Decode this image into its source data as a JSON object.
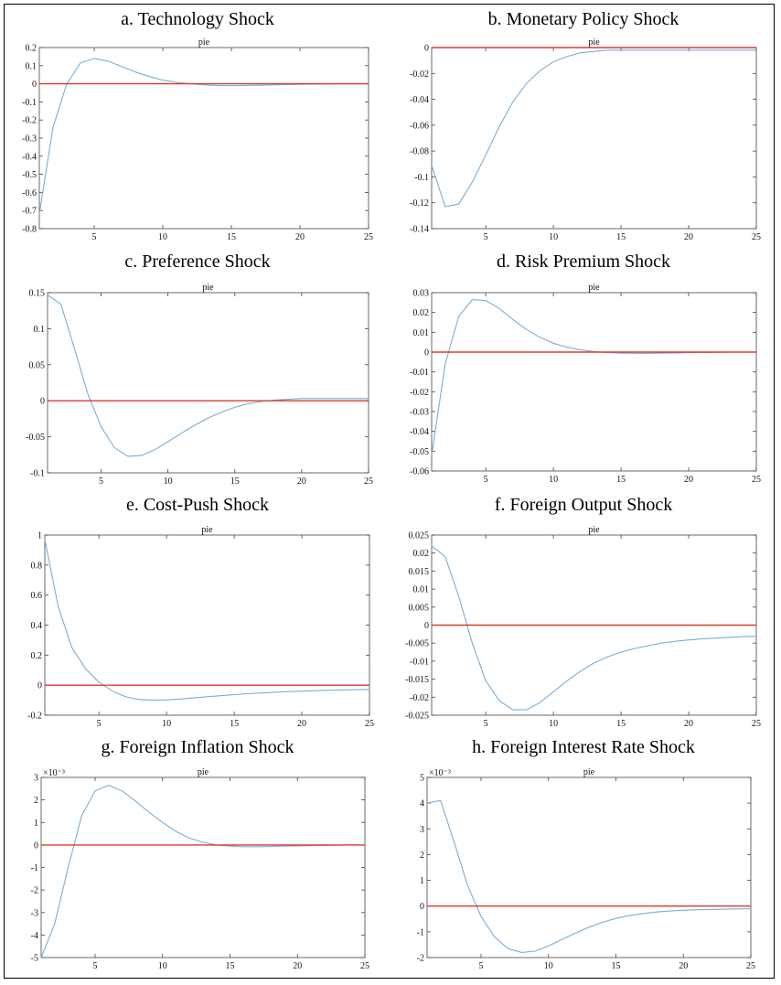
{
  "chart_data": [
    {
      "type": "line",
      "panel_title": "a. Technology Shock",
      "title": "pie",
      "x": [
        1,
        2,
        3,
        4,
        5,
        6,
        7,
        8,
        9,
        10,
        11,
        12,
        13,
        14,
        15,
        16,
        17,
        18,
        19,
        20,
        21,
        22,
        23,
        24,
        25
      ],
      "series": [
        {
          "values": [
            -0.72,
            -0.24,
            0.0,
            0.115,
            0.14,
            0.125,
            0.095,
            0.065,
            0.04,
            0.02,
            0.008,
            0.0,
            -0.006,
            -0.009,
            -0.01,
            -0.009,
            -0.008,
            -0.006,
            -0.004,
            -0.003,
            -0.002,
            -0.001,
            0.0,
            0.0,
            0.0
          ]
        },
        {
          "values": [
            0,
            0,
            0,
            0,
            0,
            0,
            0,
            0,
            0,
            0,
            0,
            0,
            0,
            0,
            0,
            0,
            0,
            0,
            0,
            0,
            0,
            0,
            0,
            0,
            0
          ]
        }
      ],
      "xlim": [
        1,
        25
      ],
      "ylim": [
        -0.8,
        0.2
      ],
      "xticks": [
        5,
        10,
        15,
        20,
        25
      ],
      "xticklabels": [
        "5",
        "10",
        "15",
        "20",
        "25"
      ],
      "yticks": [
        -0.8,
        -0.7,
        -0.6,
        -0.5,
        -0.4,
        -0.3,
        -0.2,
        -0.1,
        0,
        0.1,
        0.2
      ],
      "yticklabels": [
        "-0.8",
        "-0.7",
        "-0.6",
        "-0.5",
        "-0.4",
        "-0.3",
        "-0.2",
        "-0.1",
        "0",
        "0.1",
        "0.2"
      ],
      "exponent": "",
      "colors": [
        "#7aaed6",
        "#e0392b"
      ]
    },
    {
      "type": "line",
      "panel_title": "b. Monetary Policy Shock",
      "title": "pie",
      "x": [
        1,
        2,
        3,
        4,
        5,
        6,
        7,
        8,
        9,
        10,
        11,
        12,
        13,
        14,
        15,
        16,
        17,
        18,
        19,
        20,
        21,
        22,
        23,
        24,
        25
      ],
      "series": [
        {
          "values": [
            -0.091,
            -0.123,
            -0.121,
            -0.104,
            -0.083,
            -0.061,
            -0.042,
            -0.028,
            -0.018,
            -0.011,
            -0.007,
            -0.004,
            -0.003,
            -0.002,
            -0.002,
            -0.002,
            -0.002,
            -0.002,
            -0.002,
            -0.002,
            -0.002,
            -0.002,
            -0.002,
            -0.002,
            -0.002
          ]
        },
        {
          "values": [
            0,
            0,
            0,
            0,
            0,
            0,
            0,
            0,
            0,
            0,
            0,
            0,
            0,
            0,
            0,
            0,
            0,
            0,
            0,
            0,
            0,
            0,
            0,
            0,
            0
          ]
        }
      ],
      "xlim": [
        1,
        25
      ],
      "ylim": [
        -0.14,
        0
      ],
      "xticks": [
        5,
        10,
        15,
        20,
        25
      ],
      "xticklabels": [
        "5",
        "10",
        "15",
        "20",
        "25"
      ],
      "yticks": [
        -0.14,
        -0.12,
        -0.1,
        -0.08,
        -0.06,
        -0.04,
        -0.02,
        0
      ],
      "yticklabels": [
        "-0.14",
        "-0.12",
        "-0.1",
        "-0.08",
        "-0.06",
        "-0.04",
        "-0.02",
        "0"
      ],
      "exponent": "",
      "colors": [
        "#7aaed6",
        "#e0392b"
      ]
    },
    {
      "type": "line",
      "panel_title": "c. Preference Shock",
      "title": "pie",
      "x": [
        1,
        2,
        3,
        4,
        5,
        6,
        7,
        8,
        9,
        10,
        11,
        12,
        13,
        14,
        15,
        16,
        17,
        18,
        19,
        20,
        21,
        22,
        23,
        24,
        25
      ],
      "series": [
        {
          "values": [
            0.147,
            0.134,
            0.073,
            0.01,
            -0.036,
            -0.065,
            -0.077,
            -0.076,
            -0.068,
            -0.057,
            -0.045,
            -0.034,
            -0.024,
            -0.016,
            -0.009,
            -0.004,
            -0.001,
            0.001,
            0.002,
            0.003,
            0.003,
            0.003,
            0.003,
            0.003,
            0.003
          ]
        },
        {
          "values": [
            0,
            0,
            0,
            0,
            0,
            0,
            0,
            0,
            0,
            0,
            0,
            0,
            0,
            0,
            0,
            0,
            0,
            0,
            0,
            0,
            0,
            0,
            0,
            0,
            0
          ]
        }
      ],
      "xlim": [
        1,
        25
      ],
      "ylim": [
        -0.1,
        0.15
      ],
      "xticks": [
        5,
        10,
        15,
        20,
        25
      ],
      "xticklabels": [
        "5",
        "10",
        "15",
        "20",
        "25"
      ],
      "yticks": [
        -0.1,
        -0.05,
        0,
        0.05,
        0.1,
        0.15
      ],
      "yticklabels": [
        "-0.1",
        "-0.05",
        "0",
        "0.05",
        "0.1",
        "0.15"
      ],
      "exponent": "",
      "colors": [
        "#7aaed6",
        "#e0392b"
      ]
    },
    {
      "type": "line",
      "panel_title": "d. Risk Premium Shock",
      "title": "pie",
      "x": [
        1,
        2,
        3,
        4,
        5,
        6,
        7,
        8,
        9,
        10,
        11,
        12,
        13,
        14,
        15,
        16,
        17,
        18,
        19,
        20,
        21,
        22,
        23,
        24,
        25
      ],
      "series": [
        {
          "values": [
            -0.052,
            -0.006,
            0.018,
            0.0265,
            0.026,
            0.022,
            0.0165,
            0.0115,
            0.0075,
            0.0045,
            0.0025,
            0.0012,
            0.0003,
            -0.0002,
            -0.0005,
            -0.0006,
            -0.0006,
            -0.0005,
            -0.0004,
            -0.0003,
            -0.0002,
            -0.0001,
            0.0,
            0.0,
            0.0
          ]
        },
        {
          "values": [
            0,
            0,
            0,
            0,
            0,
            0,
            0,
            0,
            0,
            0,
            0,
            0,
            0,
            0,
            0,
            0,
            0,
            0,
            0,
            0,
            0,
            0,
            0,
            0,
            0
          ]
        }
      ],
      "xlim": [
        1,
        25
      ],
      "ylim": [
        -0.06,
        0.03
      ],
      "xticks": [
        5,
        10,
        15,
        20,
        25
      ],
      "xticklabels": [
        "5",
        "10",
        "15",
        "20",
        "25"
      ],
      "yticks": [
        -0.06,
        -0.05,
        -0.04,
        -0.03,
        -0.02,
        -0.01,
        0,
        0.01,
        0.02,
        0.03
      ],
      "yticklabels": [
        "-0.06",
        "-0.05",
        "-0.04",
        "-0.03",
        "-0.02",
        "-0.01",
        "0",
        "0.01",
        "0.02",
        "0.03"
      ],
      "exponent": "",
      "colors": [
        "#7aaed6",
        "#e0392b"
      ]
    },
    {
      "type": "line",
      "panel_title": "e. Cost-Push Shock",
      "title": "pie",
      "x": [
        1,
        2,
        3,
        4,
        5,
        6,
        7,
        8,
        9,
        10,
        11,
        12,
        13,
        14,
        15,
        16,
        17,
        18,
        19,
        20,
        21,
        22,
        23,
        24,
        25
      ],
      "series": [
        {
          "values": [
            0.97,
            0.52,
            0.25,
            0.11,
            0.02,
            -0.04,
            -0.078,
            -0.095,
            -0.1,
            -0.098,
            -0.092,
            -0.085,
            -0.077,
            -0.07,
            -0.063,
            -0.057,
            -0.052,
            -0.047,
            -0.043,
            -0.04,
            -0.037,
            -0.034,
            -0.032,
            -0.03,
            -0.028
          ]
        },
        {
          "values": [
            0,
            0,
            0,
            0,
            0,
            0,
            0,
            0,
            0,
            0,
            0,
            0,
            0,
            0,
            0,
            0,
            0,
            0,
            0,
            0,
            0,
            0,
            0,
            0,
            0
          ]
        }
      ],
      "xlim": [
        1,
        25
      ],
      "ylim": [
        -0.2,
        1
      ],
      "xticks": [
        5,
        10,
        15,
        20,
        25
      ],
      "xticklabels": [
        "5",
        "10",
        "15",
        "20",
        "25"
      ],
      "yticks": [
        -0.2,
        0,
        0.2,
        0.4,
        0.6,
        0.8,
        1
      ],
      "yticklabels": [
        "-0.2",
        "0",
        "0.2",
        "0.4",
        "0.6",
        "0.8",
        "1"
      ],
      "exponent": "",
      "colors": [
        "#7aaed6",
        "#e0392b"
      ]
    },
    {
      "type": "line",
      "panel_title": "f. Foreign Output Shock",
      "title": "pie",
      "x": [
        1,
        2,
        3,
        4,
        5,
        6,
        7,
        8,
        9,
        10,
        11,
        12,
        13,
        14,
        15,
        16,
        17,
        18,
        19,
        20,
        21,
        22,
        23,
        24,
        25
      ],
      "series": [
        {
          "values": [
            0.022,
            0.019,
            0.008,
            -0.005,
            -0.0155,
            -0.021,
            -0.0235,
            -0.0235,
            -0.0215,
            -0.0185,
            -0.0155,
            -0.0128,
            -0.0105,
            -0.0088,
            -0.0075,
            -0.0065,
            -0.0057,
            -0.005,
            -0.0045,
            -0.0041,
            -0.0038,
            -0.0036,
            -0.0034,
            -0.0032,
            -0.0031
          ]
        },
        {
          "values": [
            0,
            0,
            0,
            0,
            0,
            0,
            0,
            0,
            0,
            0,
            0,
            0,
            0,
            0,
            0,
            0,
            0,
            0,
            0,
            0,
            0,
            0,
            0,
            0,
            0
          ]
        }
      ],
      "xlim": [
        1,
        25
      ],
      "ylim": [
        -0.025,
        0.025
      ],
      "xticks": [
        5,
        10,
        15,
        20,
        25
      ],
      "xticklabels": [
        "5",
        "10",
        "15",
        "20",
        "25"
      ],
      "yticks": [
        -0.025,
        -0.02,
        -0.015,
        -0.01,
        -0.005,
        0,
        0.005,
        0.01,
        0.015,
        0.02,
        0.025
      ],
      "yticklabels": [
        "-0.025",
        "-0.02",
        "-0.015",
        "-0.01",
        "-0.005",
        "0",
        "0.005",
        "0.01",
        "0.015",
        "0.02",
        "0.025"
      ],
      "exponent": "",
      "colors": [
        "#7aaed6",
        "#e0392b"
      ]
    },
    {
      "type": "line",
      "panel_title": "g. Foreign Inflation Shock",
      "title": "pie",
      "x": [
        1,
        2,
        3,
        4,
        5,
        6,
        7,
        8,
        9,
        10,
        11,
        12,
        13,
        14,
        15,
        16,
        17,
        18,
        19,
        20,
        21,
        22,
        23,
        24,
        25
      ],
      "series": [
        {
          "values": [
            -5.0,
            -3.5,
            -1.0,
            1.3,
            2.4,
            2.65,
            2.4,
            1.95,
            1.45,
            1.0,
            0.6,
            0.3,
            0.12,
            0.0,
            -0.05,
            -0.08,
            -0.08,
            -0.07,
            -0.05,
            -0.04,
            -0.03,
            -0.02,
            -0.01,
            0.0,
            0.0
          ]
        },
        {
          "values": [
            0,
            0,
            0,
            0,
            0,
            0,
            0,
            0,
            0,
            0,
            0,
            0,
            0,
            0,
            0,
            0,
            0,
            0,
            0,
            0,
            0,
            0,
            0,
            0,
            0
          ]
        }
      ],
      "xlim": [
        1,
        25
      ],
      "ylim": [
        -5,
        3
      ],
      "xticks": [
        5,
        10,
        15,
        20,
        25
      ],
      "xticklabels": [
        "5",
        "10",
        "15",
        "20",
        "25"
      ],
      "yticks": [
        -5,
        -4,
        -3,
        -2,
        -1,
        0,
        1,
        2,
        3
      ],
      "yticklabels": [
        "-5",
        "-4",
        "-3",
        "-2",
        "-1",
        "0",
        "1",
        "2",
        "3"
      ],
      "exponent": "×10⁻³",
      "colors": [
        "#7aaed6",
        "#e0392b"
      ]
    },
    {
      "type": "line",
      "panel_title": "h. Foreign Interest Rate Shock",
      "title": "pie",
      "x": [
        1,
        2,
        3,
        4,
        5,
        6,
        7,
        8,
        9,
        10,
        11,
        12,
        13,
        14,
        15,
        16,
        17,
        18,
        19,
        20,
        21,
        22,
        23,
        24,
        25
      ],
      "series": [
        {
          "values": [
            4.0,
            4.1,
            2.5,
            0.8,
            -0.4,
            -1.2,
            -1.65,
            -1.8,
            -1.75,
            -1.55,
            -1.3,
            -1.05,
            -0.82,
            -0.63,
            -0.48,
            -0.37,
            -0.29,
            -0.23,
            -0.19,
            -0.16,
            -0.14,
            -0.13,
            -0.12,
            -0.11,
            -0.1
          ]
        },
        {
          "values": [
            0,
            0,
            0,
            0,
            0,
            0,
            0,
            0,
            0,
            0,
            0,
            0,
            0,
            0,
            0,
            0,
            0,
            0,
            0,
            0,
            0,
            0,
            0,
            0,
            0
          ]
        }
      ],
      "xlim": [
        1,
        25
      ],
      "ylim": [
        -2,
        5
      ],
      "xticks": [
        5,
        10,
        15,
        20,
        25
      ],
      "xticklabels": [
        "5",
        "10",
        "15",
        "20",
        "25"
      ],
      "yticks": [
        -2,
        -1,
        0,
        1,
        2,
        3,
        4,
        5
      ],
      "yticklabels": [
        "-2",
        "-1",
        "0",
        "1",
        "2",
        "3",
        "4",
        "5"
      ],
      "exponent": "×10⁻³",
      "colors": [
        "#7aaed6",
        "#e0392b"
      ]
    }
  ]
}
